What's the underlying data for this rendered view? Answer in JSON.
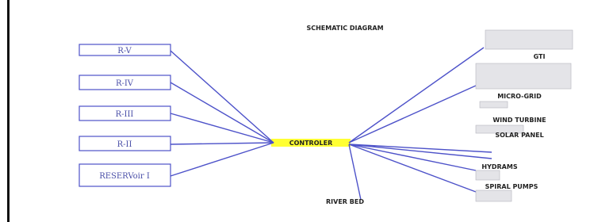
{
  "title": "SCHEMATIC DIAGRAM",
  "controller": "CONTROLER",
  "reservoirs": [
    "R-V",
    "R-IV",
    "R-III",
    "R-II",
    "RESERVoir I"
  ],
  "outputs": [
    "GTI",
    "MICRO-GRID",
    "WIND TURBINE",
    "SOLAR PANEL",
    "HYDRAMS",
    "SPIRAL PUMPS"
  ],
  "river_bed": "RIVER BED"
}
